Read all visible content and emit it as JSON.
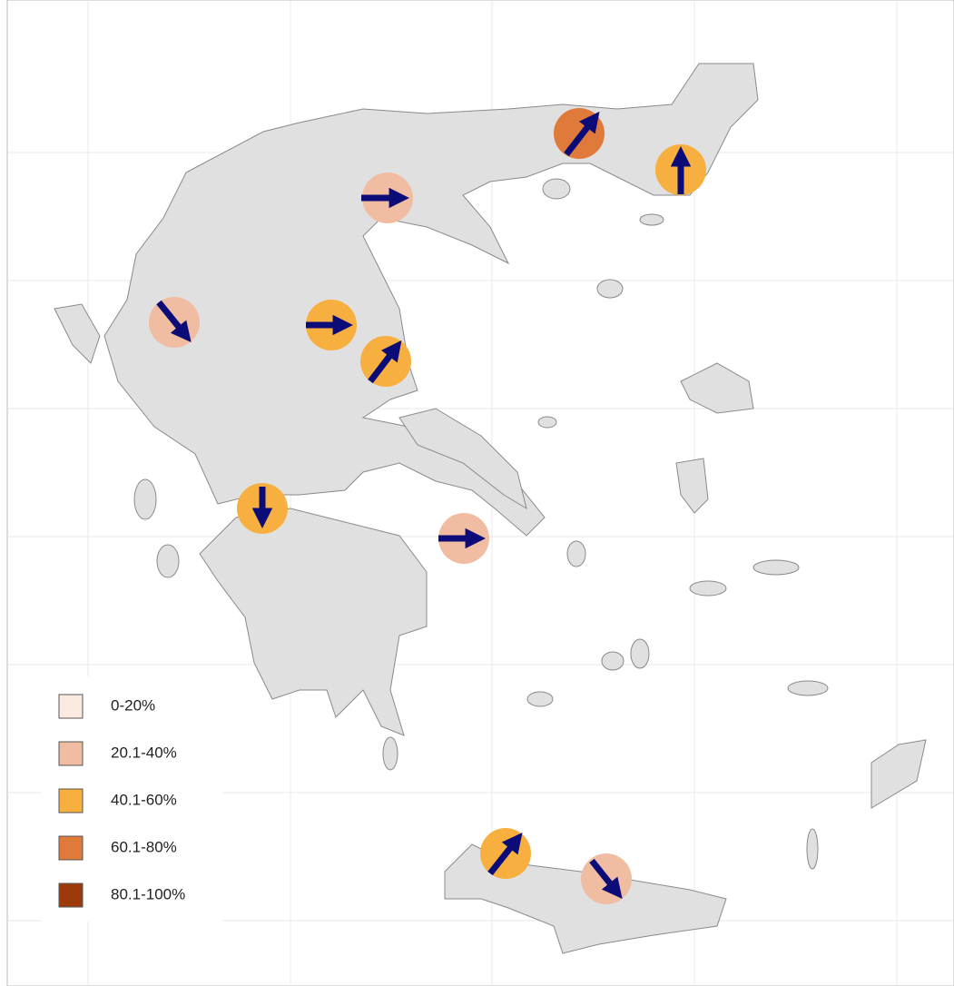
{
  "legend": {
    "items": [
      {
        "label": "0-20%",
        "color": "#fbeae0"
      },
      {
        "label": "20.1-40%",
        "color": "#f0bda2"
      },
      {
        "label": "40.1-60%",
        "color": "#f7b03f"
      },
      {
        "label": "60.1-80%",
        "color": "#e07a3b"
      },
      {
        "label": "80.1-100%",
        "color": "#9c3a0b"
      }
    ]
  }
}
